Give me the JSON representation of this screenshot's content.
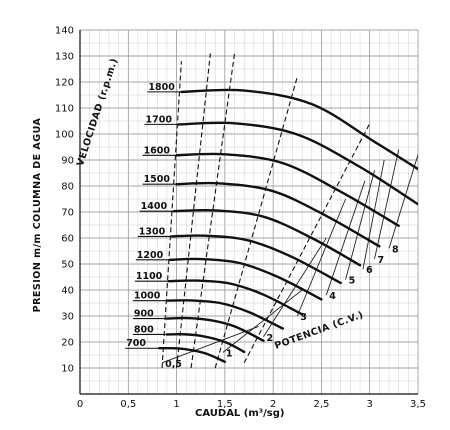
{
  "chart_data": {
    "type": "line",
    "xlabel": "CAUDAL (m³/sg)",
    "ylabel": "PRESION m/m COLUMNA DE AGUA",
    "xlim": [
      0,
      3.5
    ],
    "ylim": [
      0,
      140
    ],
    "x_ticks": [
      0,
      0.5,
      1,
      1.5,
      2,
      2.5,
      3,
      3.5
    ],
    "x_tick_labels": [
      "0",
      "0,5",
      "1",
      "1,5",
      "2",
      "2,5",
      "3",
      "3,5"
    ],
    "y_ticks": [
      10,
      20,
      30,
      40,
      50,
      60,
      70,
      80,
      90,
      100,
      110,
      120,
      130,
      140
    ],
    "y_tick_labels": [
      "10",
      "20",
      "30",
      "40",
      "50",
      "60",
      "70",
      "80",
      "90",
      "100",
      "110",
      "120",
      "130",
      "140"
    ],
    "grid": true,
    "speed_title": "VELOCIDAD (r.p.m.)",
    "power_title": "POTENCIA (C.V.)",
    "speed_curves": [
      {
        "name": "700",
        "x": [
          0.82,
          0.95,
          1.1,
          1.3,
          1.5
        ],
        "y": [
          17.6,
          17.6,
          17.2,
          15.6,
          12.4
        ]
      },
      {
        "name": "800",
        "x": [
          0.9,
          1.05,
          1.25,
          1.5,
          1.7
        ],
        "y": [
          22.9,
          23.0,
          22.4,
          20.0,
          16.2
        ]
      },
      {
        "name": "900",
        "x": [
          0.9,
          1.1,
          1.35,
          1.6,
          1.9
        ],
        "y": [
          29.0,
          29.2,
          28.4,
          26.0,
          20.5
        ]
      },
      {
        "name": "1000",
        "x": [
          0.9,
          1.15,
          1.45,
          1.75,
          2.1
        ],
        "y": [
          35.9,
          36.0,
          35.0,
          31.5,
          25.2
        ]
      },
      {
        "name": "1100",
        "x": [
          0.92,
          1.2,
          1.55,
          1.9,
          2.3
        ],
        "y": [
          43.4,
          43.6,
          42.5,
          38.2,
          30.6
        ]
      },
      {
        "name": "1200",
        "x": [
          0.93,
          1.25,
          1.65,
          2.05,
          2.5
        ],
        "y": [
          51.6,
          51.9,
          50.4,
          45.0,
          36.4
        ]
      },
      {
        "name": "1300",
        "x": [
          0.95,
          1.3,
          1.75,
          2.2,
          2.7
        ],
        "y": [
          60.6,
          60.9,
          59.0,
          52.6,
          42.7
        ]
      },
      {
        "name": "1400",
        "x": [
          0.97,
          1.4,
          1.9,
          2.4,
          2.9
        ],
        "y": [
          70.3,
          70.6,
          68.2,
          60.0,
          49.5
        ]
      },
      {
        "name": "1500",
        "x": [
          1.0,
          1.45,
          2.0,
          2.55,
          3.1
        ],
        "y": [
          80.7,
          81.0,
          78.0,
          68.5,
          56.8
        ]
      },
      {
        "name": "1600",
        "x": [
          1.0,
          1.5,
          2.1,
          2.7,
          3.3
        ],
        "y": [
          91.8,
          92.2,
          88.8,
          77.8,
          64.7
        ]
      },
      {
        "name": "1700",
        "x": [
          1.02,
          1.6,
          2.25,
          2.9,
          3.5
        ],
        "y": [
          103.7,
          104.1,
          99.8,
          87.3,
          73.0
        ]
      },
      {
        "name": "1800",
        "x": [
          1.05,
          1.7,
          2.4,
          3.05,
          3.7
        ],
        "y": [
          116.2,
          116.7,
          111.5,
          97.0,
          81.8
        ]
      }
    ],
    "power_lines": [
      {
        "name": "0,5",
        "x": [
          0.85,
          1.85
        ],
        "y": [
          12.0,
          26.0
        ]
      },
      {
        "name": "1",
        "x": [
          1.48,
          2.3
        ],
        "y": [
          16.0,
          40.0
        ]
      },
      {
        "name": "2",
        "x": [
          1.9,
          2.55
        ],
        "y": [
          22.0,
          60.0
        ]
      },
      {
        "name": "3",
        "x": [
          2.25,
          2.75
        ],
        "y": [
          30.0,
          75.0
        ]
      },
      {
        "name": "4",
        "x": [
          2.55,
          2.95
        ],
        "y": [
          38.0,
          82.0
        ]
      },
      {
        "name": "5",
        "x": [
          2.75,
          3.05
        ],
        "y": [
          44.0,
          86.0
        ]
      },
      {
        "name": "6",
        "x": [
          2.93,
          3.15
        ],
        "y": [
          48.0,
          90.0
        ]
      },
      {
        "name": "7",
        "x": [
          3.05,
          3.3
        ],
        "y": [
          52.0,
          94.0
        ]
      },
      {
        "name": "8",
        "x": [
          3.2,
          3.55
        ],
        "y": [
          56.0,
          98.0
        ]
      }
    ],
    "efficiency_lines": [
      {
        "x": [
          0.85,
          1.05
        ],
        "y": [
          10,
          128
        ]
      },
      {
        "x": [
          1.0,
          1.35
        ],
        "y": [
          10,
          131
        ]
      },
      {
        "x": [
          1.15,
          1.6
        ],
        "y": [
          10,
          131
        ]
      },
      {
        "x": [
          1.4,
          2.25
        ],
        "y": [
          10,
          122
        ]
      },
      {
        "x": [
          1.7,
          3.0
        ],
        "y": [
          12,
          104
        ]
      }
    ]
  }
}
